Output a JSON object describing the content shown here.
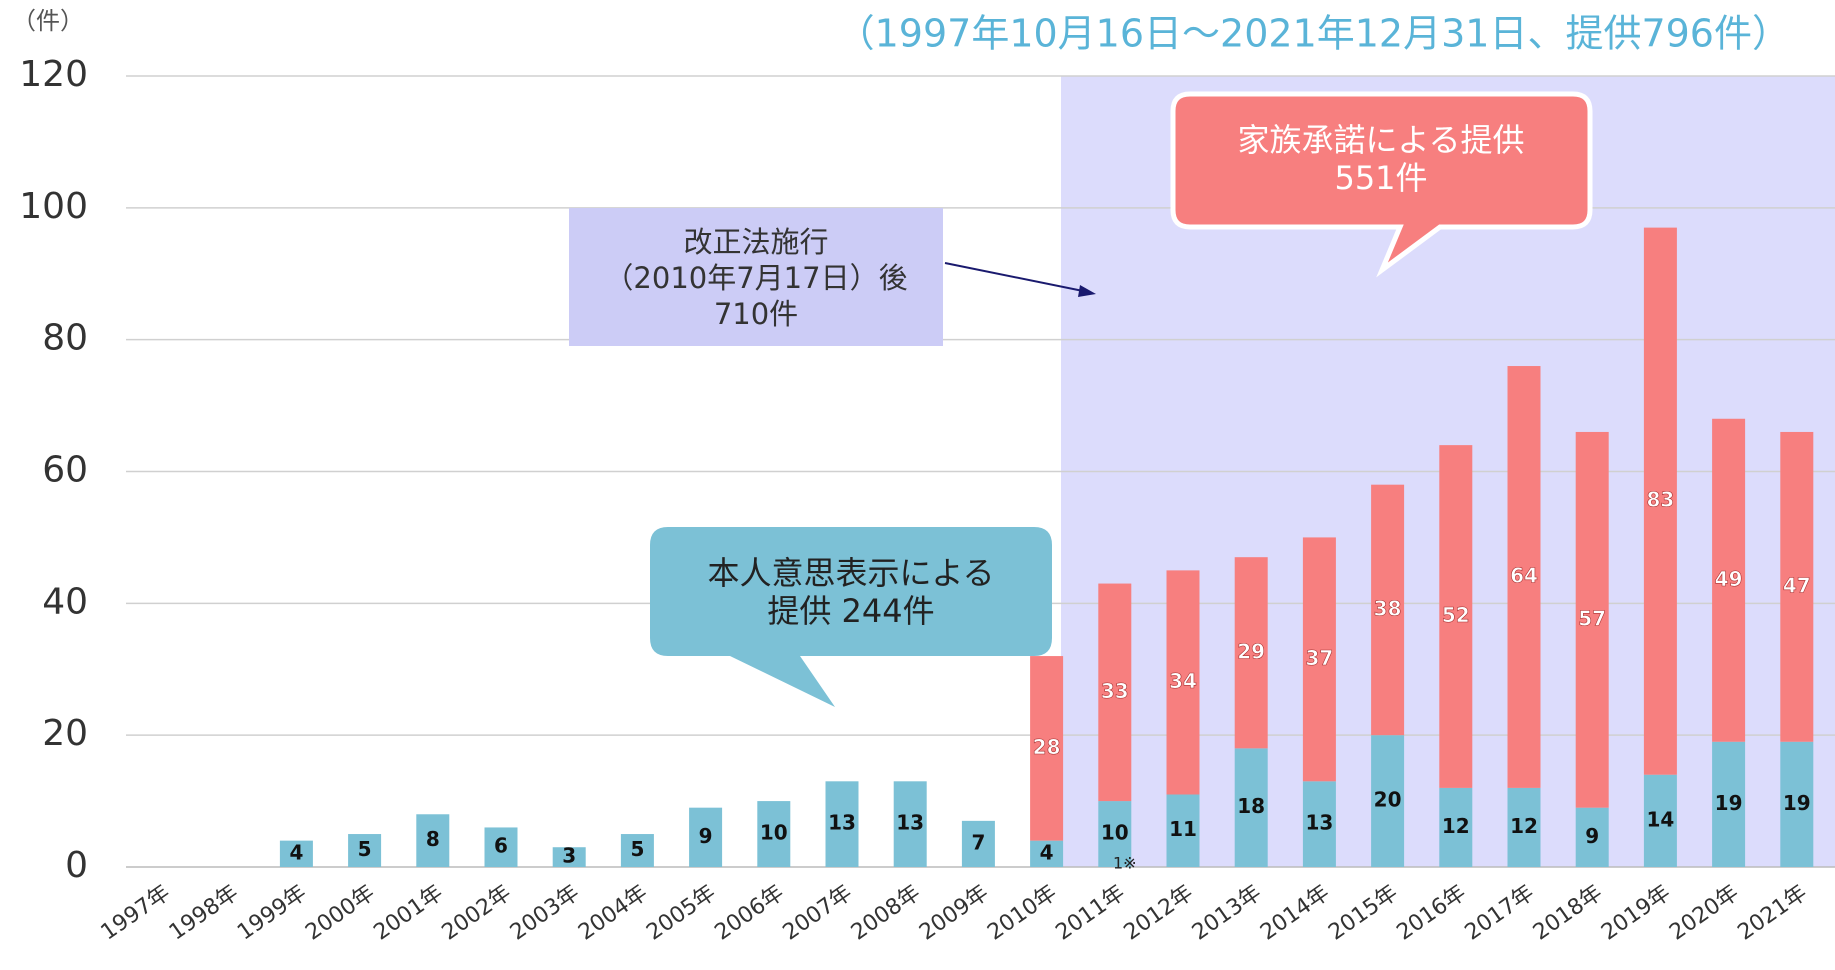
{
  "chart_data": {
    "type": "stacked-bar",
    "unit_label": "（件）",
    "subtitle": "（1997年10月16日～2021年12月31日、提供796件）",
    "categories": [
      "1997年",
      "1998年",
      "1999年",
      "2000年",
      "2001年",
      "2002年",
      "2003年",
      "2004年",
      "2005年",
      "2006年",
      "2007年",
      "2008年",
      "2009年",
      "2010年",
      "2011年",
      "2012年",
      "2013年",
      "2014年",
      "2015年",
      "2016年",
      "2017年",
      "2018年",
      "2019年",
      "2020年",
      "2021年"
    ],
    "series": [
      {
        "color": "#7cc1d6",
        "values": [
          null,
          null,
          4,
          5,
          8,
          6,
          3,
          5,
          9,
          10,
          13,
          13,
          7,
          4,
          10,
          11,
          18,
          13,
          20,
          12,
          12,
          9,
          14,
          19,
          19
        ]
      },
      {
        "color": "#f77f7f",
        "values": [
          null,
          null,
          null,
          null,
          null,
          null,
          null,
          null,
          null,
          null,
          null,
          null,
          null,
          28,
          33,
          34,
          29,
          37,
          38,
          52,
          64,
          57,
          83,
          49,
          47
        ]
      }
    ],
    "ylim": [
      0,
      120
    ],
    "yticks": [
      0,
      20,
      40,
      60,
      80,
      100,
      120
    ],
    "grid": true,
    "annotations": {
      "family": [
        "家族承諾による提供",
        "551件"
      ],
      "law": [
        "改正法施行",
        "（2010年7月17日）後",
        "710件"
      ],
      "self": [
        "本人意思表示による",
        "提供 244件"
      ],
      "note": "1※"
    }
  }
}
